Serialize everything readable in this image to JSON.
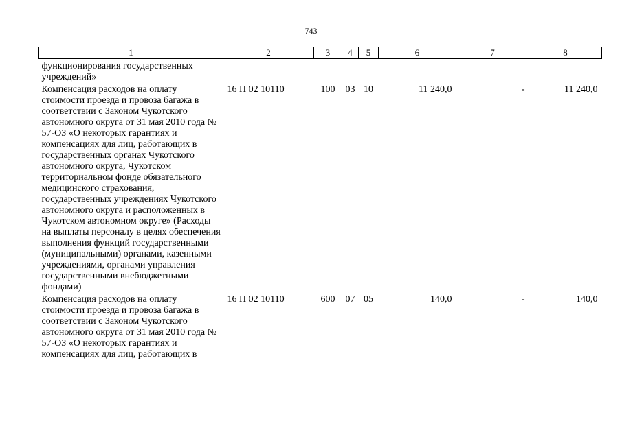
{
  "page_number": "743",
  "header": [
    "1",
    "2",
    "3",
    "4",
    "5",
    "6",
    "7",
    "8"
  ],
  "rows": [
    {
      "text": "функционирования государственных учреждений»",
      "code": "",
      "c3": "",
      "c4": "",
      "c5": "",
      "c6": "",
      "c7": "",
      "c8": ""
    },
    {
      "text": "Компенсация расходов на оплату стоимости проезда и провоза багажа в соответствии с Законом Чукотского автономного округа от 31 мая 2010 года № 57-ОЗ «О некоторых гарантиях и компенсациях для лиц, работающих в государственных органах Чукотского автономного округа, Чукотском территориальном фонде обязательного медицинского страхования, государственных учреждениях Чукотского автономного округа и расположенных в Чукотском автономном округе» (Расходы на выплаты персоналу в целях обеспечения выполнения функций государственными (муниципальными) органами, казенными учреждениями, органами управления государственными внебюджетными фондами)",
      "code": "16 П 02 10110",
      "c3": "100",
      "c4": "03",
      "c5": "10",
      "c6": "11 240,0",
      "c7": "-",
      "c8": "11 240,0"
    },
    {
      "text": "Компенсация расходов на оплату стоимости проезда и провоза багажа в соответствии с Законом Чукотского автономного округа от 31 мая 2010 года № 57-ОЗ «О некоторых гарантиях и компенсациях для лиц, работающих в",
      "code": "16 П 02 10110",
      "c3": "600",
      "c4": "07",
      "c5": "05",
      "c6": "140,0",
      "c7": "-",
      "c8": "140,0"
    }
  ]
}
